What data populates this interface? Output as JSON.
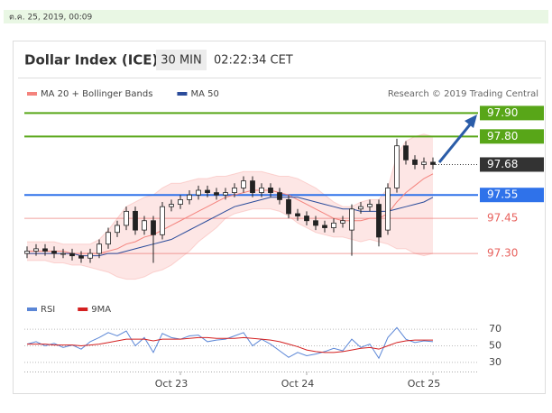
{
  "timestamp": "ต.ค. 25, 2019, 00:09",
  "header": {
    "title": "Dollar Index (ICE)",
    "interval": "30 MIN",
    "time": "02:22:34 CET"
  },
  "chart_data": [
    {
      "type": "candlestick",
      "credit": "Research © 2019 Trading Central",
      "categories": [
        null,
        null,
        null,
        null,
        null,
        null,
        null,
        null,
        null,
        null,
        null,
        null,
        null,
        null,
        null,
        null,
        null,
        "Oct 23",
        null,
        null,
        null,
        null,
        null,
        null,
        null,
        null,
        null,
        null,
        null,
        null,
        null,
        "Oct 24",
        null,
        null,
        null,
        null,
        null,
        null,
        null,
        null,
        null,
        null,
        null,
        null,
        null,
        "Oct 25"
      ],
      "open": [
        97.3,
        97.31,
        97.32,
        97.31,
        97.3,
        97.3,
        97.29,
        97.28,
        97.3,
        97.34,
        97.39,
        97.42,
        97.48,
        97.4,
        97.44,
        97.38,
        97.5,
        97.51,
        97.53,
        97.55,
        97.57,
        97.56,
        97.55,
        97.56,
        97.58,
        97.61,
        97.56,
        97.58,
        97.56,
        97.53,
        97.47,
        97.46,
        97.44,
        97.42,
        97.41,
        97.43,
        97.4,
        97.49,
        97.5,
        97.51,
        97.4,
        97.58,
        97.76,
        97.7,
        97.68,
        97.69
      ],
      "high": [
        97.33,
        97.34,
        97.34,
        97.33,
        97.32,
        97.32,
        97.31,
        97.32,
        97.36,
        97.41,
        97.44,
        97.5,
        97.5,
        97.46,
        97.46,
        97.52,
        97.53,
        97.55,
        97.57,
        97.59,
        97.59,
        97.58,
        97.58,
        97.6,
        97.63,
        97.63,
        97.6,
        97.6,
        97.58,
        97.55,
        97.49,
        97.48,
        97.46,
        97.44,
        97.45,
        97.46,
        97.51,
        97.52,
        97.53,
        97.53,
        97.6,
        97.79,
        97.78,
        97.72,
        97.71,
        97.71
      ],
      "low": [
        97.28,
        97.29,
        97.29,
        97.28,
        97.28,
        97.27,
        97.26,
        97.26,
        97.28,
        97.32,
        97.37,
        97.4,
        97.38,
        97.38,
        97.26,
        97.36,
        97.48,
        97.49,
        97.51,
        97.53,
        97.54,
        97.53,
        97.53,
        97.54,
        97.56,
        97.54,
        97.54,
        97.54,
        97.51,
        97.45,
        97.44,
        97.42,
        97.4,
        97.39,
        97.39,
        97.41,
        97.29,
        97.47,
        97.48,
        97.33,
        97.38,
        97.56,
        97.68,
        97.66,
        97.66,
        97.66
      ],
      "close": [
        97.31,
        97.32,
        97.31,
        97.3,
        97.3,
        97.29,
        97.28,
        97.3,
        97.34,
        97.39,
        97.42,
        97.48,
        97.4,
        97.44,
        97.38,
        97.5,
        97.51,
        97.53,
        97.55,
        97.57,
        97.56,
        97.55,
        97.56,
        97.58,
        97.61,
        97.56,
        97.58,
        97.56,
        97.53,
        97.47,
        97.46,
        97.44,
        97.42,
        97.41,
        97.43,
        97.44,
        97.49,
        97.5,
        97.51,
        97.37,
        97.58,
        97.76,
        97.7,
        97.68,
        97.69,
        97.68
      ],
      "series": [
        {
          "name": "MA 20 + Bollinger Bands",
          "color": "#f4837d",
          "values": [
            97.31,
            97.31,
            97.31,
            97.31,
            97.31,
            97.3,
            97.3,
            97.3,
            97.3,
            97.31,
            97.32,
            97.34,
            97.35,
            97.37,
            97.38,
            97.4,
            97.42,
            97.44,
            97.46,
            97.48,
            97.5,
            97.52,
            97.54,
            97.55,
            97.56,
            97.57,
            97.57,
            97.57,
            97.56,
            97.55,
            97.53,
            97.51,
            97.49,
            97.47,
            97.45,
            97.44,
            97.44,
            97.44,
            97.45,
            97.45,
            97.47,
            97.52,
            97.56,
            97.59,
            97.62,
            97.64
          ],
          "upper": [
            97.35,
            97.35,
            97.35,
            97.35,
            97.34,
            97.34,
            97.34,
            97.34,
            97.36,
            97.4,
            97.45,
            97.5,
            97.52,
            97.54,
            97.55,
            97.58,
            97.6,
            97.6,
            97.61,
            97.62,
            97.62,
            97.63,
            97.63,
            97.64,
            97.65,
            97.65,
            97.65,
            97.64,
            97.63,
            97.63,
            97.62,
            97.6,
            97.58,
            97.55,
            97.52,
            97.5,
            97.5,
            97.52,
            97.53,
            97.53,
            97.58,
            97.72,
            97.78,
            97.8,
            97.81,
            97.8
          ],
          "lower": [
            97.27,
            97.27,
            97.27,
            97.26,
            97.26,
            97.25,
            97.25,
            97.24,
            97.23,
            97.22,
            97.2,
            97.19,
            97.19,
            97.2,
            97.22,
            97.23,
            97.25,
            97.28,
            97.31,
            97.35,
            97.38,
            97.41,
            97.45,
            97.47,
            97.48,
            97.49,
            97.49,
            97.49,
            97.48,
            97.46,
            97.43,
            97.41,
            97.39,
            97.38,
            97.37,
            97.37,
            97.36,
            97.35,
            97.36,
            97.35,
            97.34,
            97.32,
            97.32,
            97.3,
            97.29,
            97.3
          ]
        },
        {
          "name": "MA 50",
          "color": "#2b4c9b",
          "values": [
            97.3,
            97.3,
            97.3,
            97.3,
            97.3,
            97.3,
            97.29,
            97.29,
            97.29,
            97.3,
            97.3,
            97.31,
            97.32,
            97.33,
            97.34,
            97.35,
            97.36,
            97.38,
            97.4,
            97.42,
            97.44,
            97.46,
            97.48,
            97.5,
            97.51,
            97.52,
            97.53,
            97.54,
            97.54,
            97.54,
            97.54,
            97.53,
            97.52,
            97.51,
            97.5,
            97.49,
            97.49,
            97.48,
            97.48,
            97.48,
            97.48,
            97.49,
            97.5,
            97.51,
            97.52,
            97.54
          ]
        }
      ],
      "levels": [
        {
          "value": 97.9,
          "label": "97.90",
          "color": "#58a618",
          "style": "solid",
          "box": true
        },
        {
          "value": 97.8,
          "label": "97.80",
          "color": "#58a618",
          "style": "solid",
          "box": true
        },
        {
          "value": 97.68,
          "label": "97.68",
          "color": "#333333",
          "style": "dotted",
          "box": true
        },
        {
          "value": 97.55,
          "label": "97.55",
          "color": "#2f72ea",
          "style": "solid",
          "box": true
        },
        {
          "value": 97.45,
          "label": "97.45",
          "color": "#e8625e",
          "style": "solid",
          "box": false
        },
        {
          "value": 97.3,
          "label": "97.30",
          "color": "#e8625e",
          "style": "solid",
          "box": false
        }
      ],
      "ylim": [
        97.15,
        97.94
      ]
    },
    {
      "type": "line",
      "series": [
        {
          "name": "RSI",
          "color": "#5b86d6",
          "values": [
            52,
            55,
            50,
            53,
            48,
            51,
            46,
            55,
            60,
            66,
            62,
            68,
            50,
            60,
            42,
            65,
            60,
            58,
            62,
            63,
            55,
            57,
            58,
            62,
            66,
            50,
            58,
            52,
            44,
            36,
            42,
            38,
            40,
            43,
            47,
            44,
            58,
            48,
            52,
            35,
            60,
            72,
            58,
            54,
            56,
            55
          ]
        },
        {
          "name": "9MA",
          "color": "#d42020",
          "values": [
            52,
            52,
            52,
            51,
            51,
            51,
            50,
            51,
            52,
            54,
            56,
            58,
            58,
            58,
            56,
            58,
            58,
            58,
            59,
            60,
            60,
            59,
            59,
            59,
            60,
            59,
            58,
            57,
            55,
            52,
            49,
            45,
            43,
            42,
            42,
            43,
            45,
            47,
            48,
            46,
            50,
            54,
            56,
            57,
            57,
            57
          ]
        }
      ],
      "ylim": [
        20,
        80
      ],
      "yticks": [
        30,
        50,
        70
      ],
      "grid": true
    }
  ]
}
